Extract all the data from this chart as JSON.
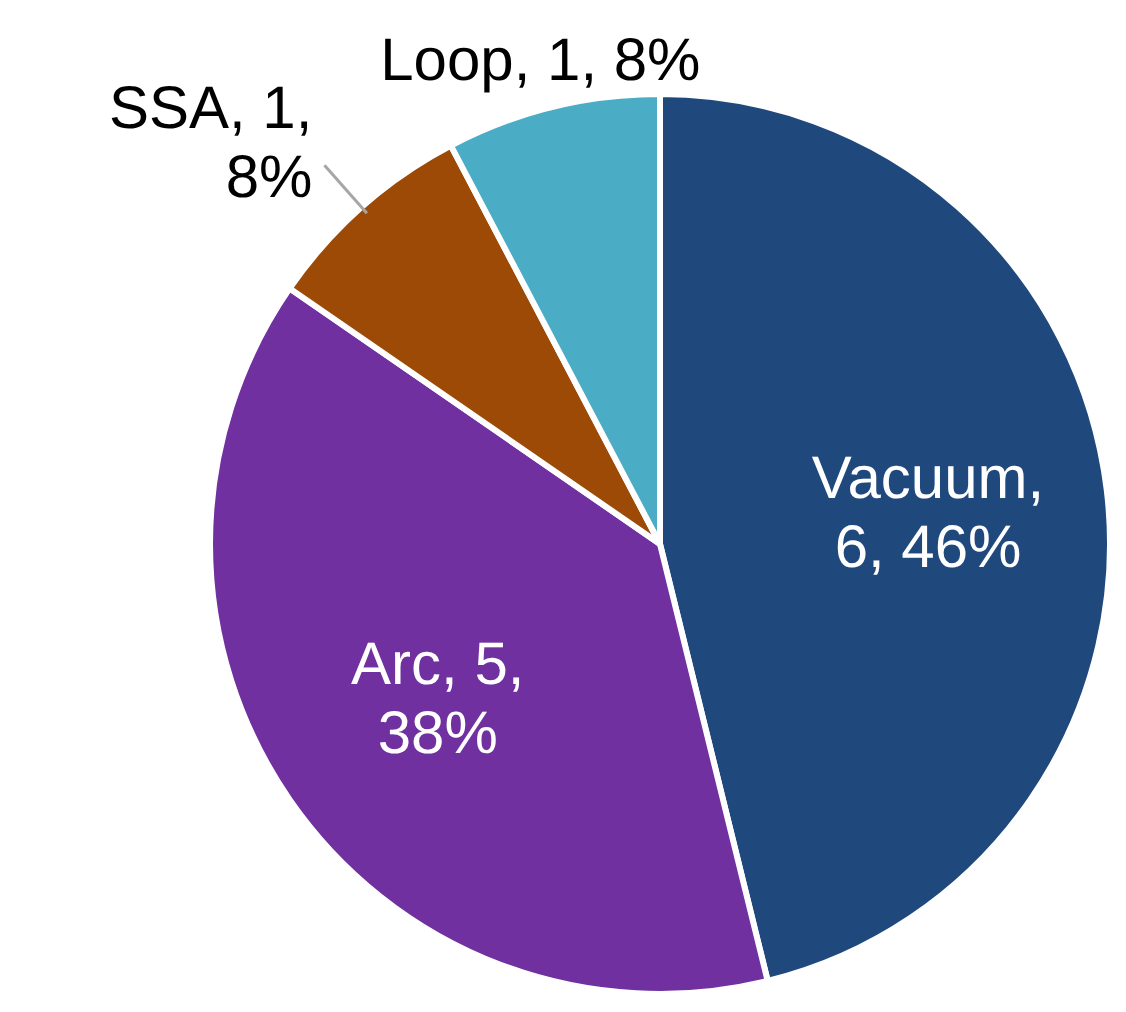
{
  "chart_data": {
    "type": "pie",
    "categories": [
      "Vacuum",
      "Arc",
      "SSA",
      "Loop"
    ],
    "values": [
      6,
      5,
      1,
      1
    ],
    "colors": [
      "#1f497d",
      "#7030a0",
      "#9c4a06",
      "#4bacc6"
    ],
    "value_labels": [
      ", 6, 46%",
      ", 5, 38%",
      ", 1, 8%",
      ", 1, 8%"
    ]
  }
}
